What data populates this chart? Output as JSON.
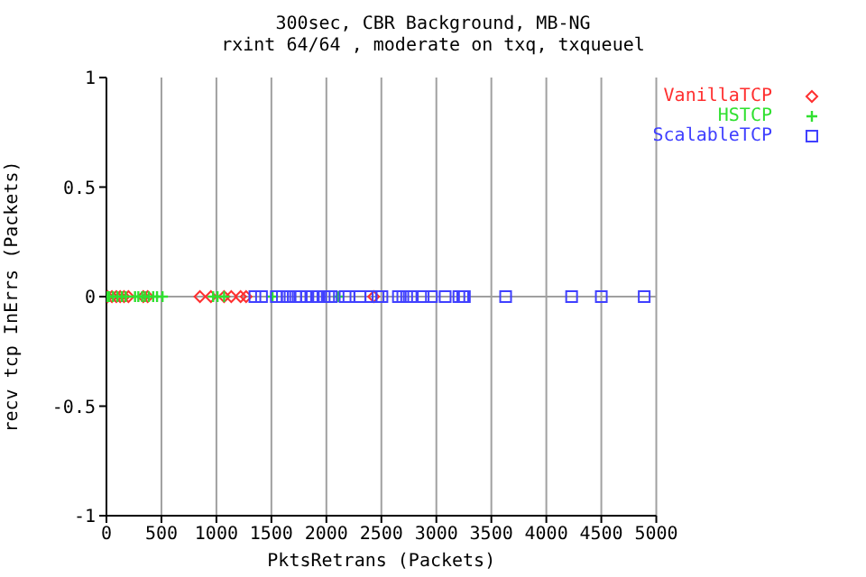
{
  "chart_data": {
    "type": "scatter",
    "title": "300sec, CBR Background, MB-NG",
    "subtitle": "rxint 64/64 , moderate on txq, txqueuel",
    "xlabel": "PktsRetrans (Packets)",
    "ylabel": "recv tcp InErrs (Packets)",
    "xlim": [
      0,
      5000
    ],
    "xticks": [
      0,
      500,
      1000,
      1500,
      2000,
      2500,
      3000,
      3500,
      4000,
      4500,
      5000
    ],
    "ylim": [
      -1,
      1
    ],
    "yticks": [
      -1,
      -0.5,
      0,
      0.5,
      1
    ],
    "grid": "x",
    "legend": "top right",
    "ref_lines": [
      {
        "axis": "y",
        "value": 0,
        "color": "#a0a0a0"
      }
    ],
    "series": [
      {
        "name": "VanillaTCP",
        "color": "#ff3030",
        "marker": "diamond",
        "x": [
          10,
          50,
          90,
          125,
          160,
          200,
          335,
          375,
          850,
          950,
          1070,
          1135,
          1220,
          1270,
          2430
        ],
        "values": [
          0,
          0,
          0,
          0,
          0,
          0,
          0,
          0,
          0,
          0,
          0,
          0,
          0,
          0,
          0
        ]
      },
      {
        "name": "HSTCP",
        "color": "#30e030",
        "marker": "cross",
        "x": [
          10,
          25,
          60,
          100,
          140,
          175,
          260,
          290,
          325,
          350,
          385,
          425,
          460,
          510,
          970,
          1010,
          1070,
          1510,
          2110
        ],
        "values": [
          0,
          0,
          0,
          0,
          0,
          0,
          0,
          0,
          0,
          0,
          0,
          0,
          0,
          0,
          0,
          0,
          0,
          0,
          0
        ]
      },
      {
        "name": "ScalableTCP",
        "color": "#4040ff",
        "marker": "square",
        "x": [
          1350,
          1410,
          1545,
          1600,
          1645,
          1670,
          1720,
          1760,
          1820,
          1870,
          1910,
          1930,
          1980,
          2020,
          2045,
          2170,
          2205,
          2305,
          2405,
          2470,
          2505,
          2655,
          2695,
          2730,
          2770,
          2880,
          2955,
          3080,
          3205,
          3240,
          3255,
          3630,
          4230,
          4500,
          4890
        ],
        "values": [
          0,
          0,
          0,
          0,
          0,
          0,
          0,
          0,
          0,
          0,
          0,
          0,
          0,
          0,
          0,
          0,
          0,
          0,
          0,
          0,
          0,
          0,
          0,
          0,
          0,
          0,
          0,
          0,
          0,
          0,
          0,
          0,
          0,
          0,
          0
        ]
      }
    ]
  }
}
